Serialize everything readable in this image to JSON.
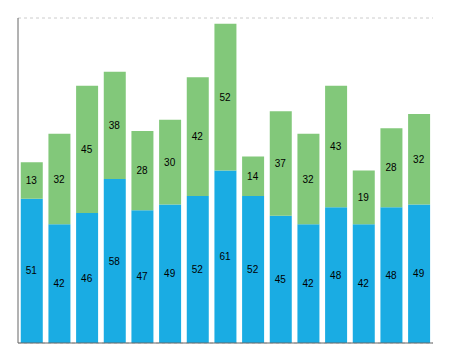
{
  "chart_data": {
    "type": "bar",
    "stacked": true,
    "categories": [
      null,
      null,
      null,
      null,
      null,
      null,
      null,
      null,
      null,
      null,
      null,
      null,
      null,
      null,
      null
    ],
    "series": [
      {
        "color": "#1aace3",
        "values": [
          51,
          42,
          46,
          58,
          47,
          49,
          52,
          61,
          52,
          45,
          42,
          48,
          42,
          48,
          49
        ]
      },
      {
        "color": "#82c87a",
        "values": [
          13,
          32,
          45,
          38,
          28,
          30,
          42,
          52,
          14,
          37,
          32,
          43,
          19,
          28,
          32
        ]
      }
    ],
    "ylim": [
      0,
      115
    ],
    "yticks": [
      20,
      40,
      60,
      80,
      100
    ],
    "grid": true,
    "data_labels": true,
    "tick_labels": false
  }
}
